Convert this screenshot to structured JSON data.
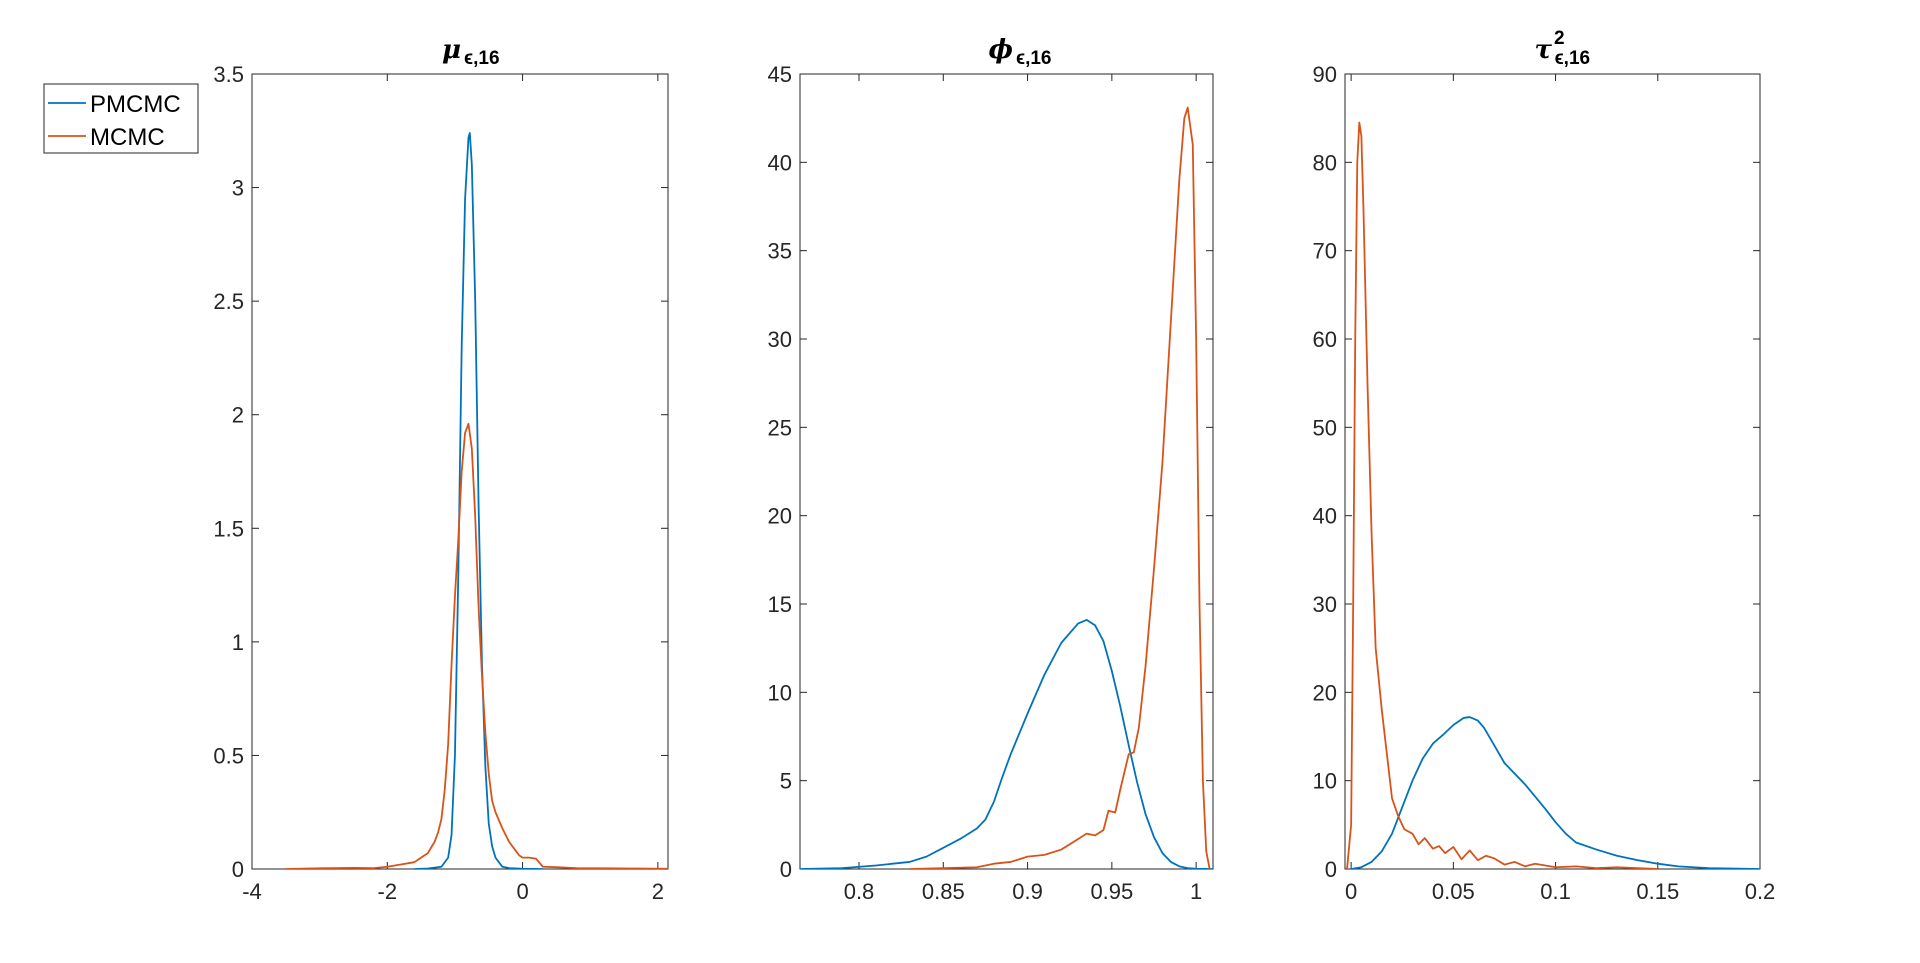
{
  "legend": [
    {
      "label": "PMCMC",
      "color": "#0072BD"
    },
    {
      "label": "MCMC",
      "color": "#D95319"
    }
  ],
  "chart_data": [
    {
      "type": "line",
      "title_main": "μ",
      "title_sub": "ϵ,16",
      "title_sup": "",
      "xlim": [
        -4,
        2.15
      ],
      "ylim": [
        0,
        3.5
      ],
      "xticks": [
        -4,
        -2,
        0,
        2
      ],
      "xtick_labels": [
        "-4",
        "-2",
        "0",
        "2"
      ],
      "yticks": [
        0,
        0.5,
        1,
        1.5,
        2,
        2.5,
        3,
        3.5
      ],
      "ytick_labels": [
        "0",
        "0.5",
        "1",
        "1.5",
        "2",
        "2.5",
        "3",
        "3.5"
      ],
      "series": [
        {
          "name": "PMCMC",
          "color": "#0072BD",
          "x": [
            -1.6,
            -1.4,
            -1.2,
            -1.1,
            -1.05,
            -1.0,
            -0.95,
            -0.9,
            -0.85,
            -0.8,
            -0.78,
            -0.75,
            -0.7,
            -0.65,
            -0.6,
            -0.55,
            -0.5,
            -0.45,
            -0.4,
            -0.35,
            -0.3,
            -0.2,
            0.0,
            0.3
          ],
          "y": [
            0,
            0.002,
            0.01,
            0.05,
            0.15,
            0.5,
            1.3,
            2.3,
            2.95,
            3.22,
            3.24,
            3.1,
            2.5,
            1.6,
            0.9,
            0.45,
            0.2,
            0.1,
            0.05,
            0.03,
            0.01,
            0.004,
            0.001,
            0
          ]
        },
        {
          "name": "MCMC",
          "color": "#D95319",
          "x": [
            -3.5,
            -3.0,
            -2.5,
            -2.2,
            -2.0,
            -1.8,
            -1.6,
            -1.5,
            -1.4,
            -1.3,
            -1.25,
            -1.2,
            -1.15,
            -1.1,
            -1.05,
            -1.0,
            -0.95,
            -0.9,
            -0.85,
            -0.8,
            -0.75,
            -0.7,
            -0.65,
            -0.6,
            -0.55,
            -0.5,
            -0.45,
            -0.4,
            -0.3,
            -0.2,
            -0.1,
            -0.05,
            0.0,
            0.1,
            0.2,
            0.3,
            0.5,
            0.8,
            1.2,
            1.6,
            2.15
          ],
          "y": [
            0,
            0.003,
            0.005,
            0.004,
            0.01,
            0.02,
            0.03,
            0.05,
            0.07,
            0.12,
            0.16,
            0.22,
            0.35,
            0.55,
            0.9,
            1.2,
            1.45,
            1.75,
            1.92,
            1.96,
            1.85,
            1.55,
            1.15,
            0.85,
            0.6,
            0.42,
            0.3,
            0.25,
            0.18,
            0.12,
            0.08,
            0.06,
            0.05,
            0.05,
            0.045,
            0.01,
            0.008,
            0.004,
            0.003,
            0.002,
            0.001
          ]
        }
      ]
    },
    {
      "type": "line",
      "title_main": "ϕ",
      "title_sub": "ϵ,16",
      "title_sup": "",
      "xlim": [
        0.765,
        1.01
      ],
      "ylim": [
        0,
        45
      ],
      "xticks": [
        0.8,
        0.85,
        0.9,
        0.95,
        1.0
      ],
      "xtick_labels": [
        "0.8",
        "0.85",
        "0.9",
        "0.95",
        "1"
      ],
      "yticks": [
        0,
        5,
        10,
        15,
        20,
        25,
        30,
        35,
        40,
        45
      ],
      "ytick_labels": [
        "0",
        "5",
        "10",
        "15",
        "20",
        "25",
        "30",
        "35",
        "40",
        "45"
      ],
      "series": [
        {
          "name": "PMCMC",
          "color": "#0072BD",
          "x": [
            0.765,
            0.79,
            0.81,
            0.83,
            0.84,
            0.85,
            0.86,
            0.87,
            0.875,
            0.88,
            0.885,
            0.89,
            0.9,
            0.91,
            0.92,
            0.93,
            0.935,
            0.94,
            0.945,
            0.95,
            0.955,
            0.96,
            0.965,
            0.97,
            0.975,
            0.98,
            0.985,
            0.99,
            0.995,
            1.0,
            1.01
          ],
          "y": [
            0,
            0.05,
            0.2,
            0.4,
            0.7,
            1.2,
            1.7,
            2.3,
            2.8,
            3.8,
            5.2,
            6.5,
            8.8,
            11.0,
            12.8,
            13.9,
            14.1,
            13.8,
            12.9,
            11.2,
            9.2,
            7.0,
            4.9,
            3.1,
            1.8,
            0.9,
            0.4,
            0.15,
            0.05,
            0.01,
            0
          ]
        },
        {
          "name": "MCMC",
          "color": "#D95319",
          "x": [
            0.83,
            0.85,
            0.87,
            0.88,
            0.89,
            0.9,
            0.91,
            0.92,
            0.93,
            0.935,
            0.94,
            0.945,
            0.948,
            0.952,
            0.955,
            0.96,
            0.963,
            0.966,
            0.97,
            0.975,
            0.98,
            0.985,
            0.99,
            0.993,
            0.995,
            0.998,
            1.0,
            1.002,
            1.004,
            1.006,
            1.008
          ],
          "y": [
            0,
            0.05,
            0.1,
            0.3,
            0.4,
            0.7,
            0.8,
            1.1,
            1.7,
            2.0,
            1.9,
            2.2,
            3.3,
            3.2,
            4.5,
            6.5,
            6.6,
            8.0,
            11.5,
            17.0,
            23.0,
            31.0,
            39.0,
            42.5,
            43.1,
            41.0,
            30.0,
            15.0,
            5.0,
            1.0,
            0
          ]
        }
      ]
    },
    {
      "type": "line",
      "title_main": "τ",
      "title_sub": "ϵ,16",
      "title_sup": "2",
      "xlim": [
        -0.003,
        0.2
      ],
      "ylim": [
        0,
        90
      ],
      "xticks": [
        0,
        0.05,
        0.1,
        0.15,
        0.2
      ],
      "xtick_labels": [
        "0",
        "0.05",
        "0.1",
        "0.15",
        "0.2"
      ],
      "yticks": [
        0,
        10,
        20,
        30,
        40,
        50,
        60,
        70,
        80,
        90
      ],
      "ytick_labels": [
        "0",
        "10",
        "20",
        "30",
        "40",
        "50",
        "60",
        "70",
        "80",
        "90"
      ],
      "series": [
        {
          "name": "PMCMC",
          "color": "#0072BD",
          "x": [
            0.0,
            0.005,
            0.01,
            0.015,
            0.02,
            0.025,
            0.03,
            0.035,
            0.04,
            0.045,
            0.05,
            0.055,
            0.058,
            0.062,
            0.065,
            0.07,
            0.075,
            0.08,
            0.085,
            0.09,
            0.095,
            0.1,
            0.105,
            0.11,
            0.12,
            0.13,
            0.14,
            0.15,
            0.16,
            0.175,
            0.2
          ],
          "y": [
            0,
            0.2,
            0.8,
            2.0,
            4.0,
            7.0,
            10.0,
            12.5,
            14.2,
            15.2,
            16.3,
            17.1,
            17.2,
            16.8,
            16.0,
            14.0,
            12.0,
            10.8,
            9.6,
            8.2,
            6.8,
            5.3,
            4.0,
            3.0,
            2.2,
            1.5,
            1.0,
            0.6,
            0.3,
            0.1,
            0
          ]
        },
        {
          "name": "MCMC",
          "color": "#D95319",
          "x": [
            -0.002,
            0.0,
            0.001,
            0.002,
            0.003,
            0.004,
            0.005,
            0.006,
            0.008,
            0.01,
            0.012,
            0.015,
            0.018,
            0.02,
            0.023,
            0.026,
            0.03,
            0.033,
            0.036,
            0.04,
            0.043,
            0.046,
            0.05,
            0.054,
            0.058,
            0.062,
            0.066,
            0.07,
            0.075,
            0.08,
            0.085,
            0.09,
            0.1,
            0.11,
            0.12,
            0.13,
            0.15
          ],
          "y": [
            0,
            5.0,
            30.0,
            60.0,
            80.0,
            84.5,
            83.0,
            75.0,
            55.0,
            38.0,
            25.0,
            18.0,
            12.0,
            8.0,
            6.0,
            4.5,
            4.0,
            2.8,
            3.5,
            2.3,
            2.6,
            1.8,
            2.5,
            1.1,
            2.1,
            1.0,
            1.5,
            1.2,
            0.5,
            0.8,
            0.3,
            0.6,
            0.2,
            0.3,
            0.1,
            0.2,
            0
          ]
        }
      ]
    }
  ]
}
